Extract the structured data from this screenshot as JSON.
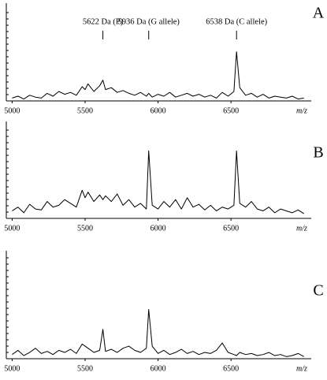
{
  "chart_data": [
    {
      "type": "line",
      "label": "A",
      "xlabel": "m/z",
      "x": [
        5000,
        5040,
        5080,
        5120,
        5160,
        5200,
        5240,
        5280,
        5320,
        5360,
        5400,
        5440,
        5480,
        5500,
        5520,
        5560,
        5600,
        5622,
        5640,
        5680,
        5720,
        5760,
        5800,
        5840,
        5880,
        5920,
        5936,
        5960,
        6000,
        6040,
        6080,
        6120,
        6160,
        6200,
        6240,
        6280,
        6320,
        6360,
        6400,
        6440,
        6480,
        6520,
        6538,
        6560,
        6600,
        6640,
        6680,
        6720,
        6760,
        6800,
        6840,
        6880,
        6920,
        6960,
        7000
      ],
      "values": [
        3,
        5,
        2,
        6,
        4,
        3,
        8,
        5,
        10,
        7,
        9,
        6,
        15,
        12,
        18,
        10,
        16,
        22,
        12,
        14,
        9,
        11,
        8,
        6,
        9,
        5,
        8,
        4,
        7,
        5,
        9,
        4,
        6,
        8,
        5,
        7,
        4,
        6,
        3,
        9,
        5,
        10,
        52,
        14,
        6,
        8,
        4,
        7,
        3,
        5,
        4,
        3,
        5,
        2,
        3
      ],
      "color": "#000000",
      "xlim": [
        4960,
        7050
      ],
      "ylim": [
        0,
        100
      ],
      "xticks": [
        5000,
        5500,
        6000,
        6500
      ],
      "annotations": [
        {
          "text": "5622 Da (P)",
          "x": 5622
        },
        {
          "text": "5936 Da (G allele)",
          "x": 5936
        },
        {
          "text": "6538 Da (C allele)",
          "x": 6538
        }
      ]
    },
    {
      "type": "line",
      "label": "B",
      "xlabel": "m/z",
      "x": [
        5000,
        5040,
        5080,
        5120,
        5160,
        5200,
        5240,
        5280,
        5320,
        5360,
        5400,
        5440,
        5480,
        5500,
        5520,
        5560,
        5600,
        5622,
        5640,
        5680,
        5720,
        5760,
        5800,
        5840,
        5880,
        5920,
        5936,
        5960,
        6000,
        6040,
        6080,
        6120,
        6160,
        6200,
        6240,
        6280,
        6320,
        6360,
        6400,
        6440,
        6480,
        6520,
        6538,
        6560,
        6600,
        6640,
        6680,
        6720,
        6760,
        6800,
        6840,
        6880,
        6920,
        6960,
        7000
      ],
      "values": [
        8,
        12,
        6,
        15,
        10,
        9,
        18,
        12,
        14,
        20,
        16,
        12,
        30,
        22,
        28,
        18,
        25,
        20,
        24,
        18,
        26,
        14,
        20,
        12,
        16,
        10,
        72,
        14,
        10,
        18,
        12,
        20,
        10,
        22,
        12,
        15,
        9,
        14,
        8,
        12,
        10,
        14,
        72,
        16,
        12,
        18,
        10,
        8,
        12,
        6,
        10,
        8,
        6,
        9,
        5
      ],
      "color": "#000000",
      "xlim": [
        4960,
        7050
      ],
      "ylim": [
        0,
        100
      ],
      "xticks": [
        5000,
        5500,
        6000,
        6500
      ]
    },
    {
      "type": "line",
      "label": "C",
      "xlabel": "m/z",
      "x": [
        5000,
        5040,
        5080,
        5120,
        5160,
        5200,
        5240,
        5280,
        5320,
        5360,
        5400,
        5440,
        5480,
        5500,
        5520,
        5560,
        5600,
        5622,
        5640,
        5680,
        5720,
        5760,
        5800,
        5840,
        5880,
        5920,
        5936,
        5960,
        6000,
        6040,
        6080,
        6120,
        6160,
        6200,
        6240,
        6280,
        6320,
        6360,
        6400,
        6440,
        6480,
        6520,
        6538,
        6560,
        6600,
        6640,
        6680,
        6720,
        6760,
        6800,
        6840,
        6880,
        6920,
        6960,
        7000
      ],
      "values": [
        4,
        8,
        3,
        6,
        10,
        5,
        7,
        4,
        8,
        6,
        9,
        5,
        14,
        12,
        10,
        6,
        8,
        28,
        7,
        9,
        6,
        10,
        12,
        8,
        6,
        10,
        47,
        12,
        5,
        8,
        4,
        6,
        9,
        5,
        7,
        4,
        6,
        5,
        8,
        15,
        6,
        4,
        3,
        6,
        4,
        5,
        3,
        4,
        6,
        3,
        4,
        2,
        3,
        5,
        2
      ],
      "color": "#000000",
      "xlim": [
        4960,
        7050
      ],
      "ylim": [
        0,
        100
      ],
      "xticks": [
        5000,
        5500,
        6000,
        6500
      ]
    }
  ]
}
